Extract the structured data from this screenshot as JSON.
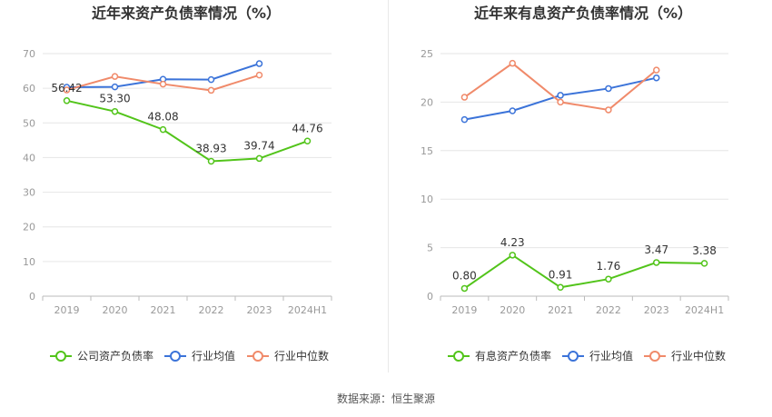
{
  "source_text": "数据来源：恒生聚源",
  "colors": {
    "green": "#52c41a",
    "blue": "#3b73d9",
    "orange": "#f08a6a",
    "grid": "#e6e6e6",
    "axis": "#999999",
    "label": "#333333"
  },
  "chart_data": [
    {
      "type": "line",
      "title": "近年来资产负债率情况（%）",
      "categories": [
        "2019",
        "2020",
        "2021",
        "2022",
        "2023",
        "2024H1"
      ],
      "ylim": [
        0,
        70
      ],
      "yticks": [
        "0",
        "10",
        "20",
        "30",
        "40",
        "50",
        "60",
        "70"
      ],
      "grid": true,
      "legend_position": "bottom",
      "series": [
        {
          "name": "公司资产负债率",
          "color": "green",
          "values": [
            56.42,
            53.3,
            48.08,
            38.93,
            39.74,
            44.76
          ],
          "labels": [
            "56.42",
            "53.30",
            "48.08",
            "38.93",
            "39.74",
            "44.76"
          ]
        },
        {
          "name": "行业均值",
          "color": "blue",
          "values": [
            60.3,
            60.4,
            62.6,
            62.5,
            67.1,
            null
          ]
        },
        {
          "name": "行业中位数",
          "color": "orange",
          "values": [
            59.5,
            63.4,
            61.2,
            59.4,
            63.8,
            null
          ]
        }
      ]
    },
    {
      "type": "line",
      "title": "近年来有息资产负债率情况（%）",
      "categories": [
        "2019",
        "2020",
        "2021",
        "2022",
        "2023",
        "2024H1"
      ],
      "ylim": [
        0,
        25
      ],
      "yticks": [
        "0",
        "5",
        "10",
        "15",
        "20",
        "25"
      ],
      "grid": true,
      "legend_position": "bottom",
      "series": [
        {
          "name": "有息资产负债率",
          "color": "green",
          "values": [
            0.8,
            4.23,
            0.91,
            1.76,
            3.47,
            3.38
          ],
          "labels": [
            "0.80",
            "4.23",
            "0.91",
            "1.76",
            "3.47",
            "3.38"
          ]
        },
        {
          "name": "行业均值",
          "color": "blue",
          "values": [
            18.2,
            19.1,
            20.7,
            21.4,
            22.5,
            null
          ]
        },
        {
          "name": "行业中位数",
          "color": "orange",
          "values": [
            20.5,
            24.0,
            20.0,
            19.2,
            23.3,
            null
          ]
        }
      ]
    }
  ]
}
